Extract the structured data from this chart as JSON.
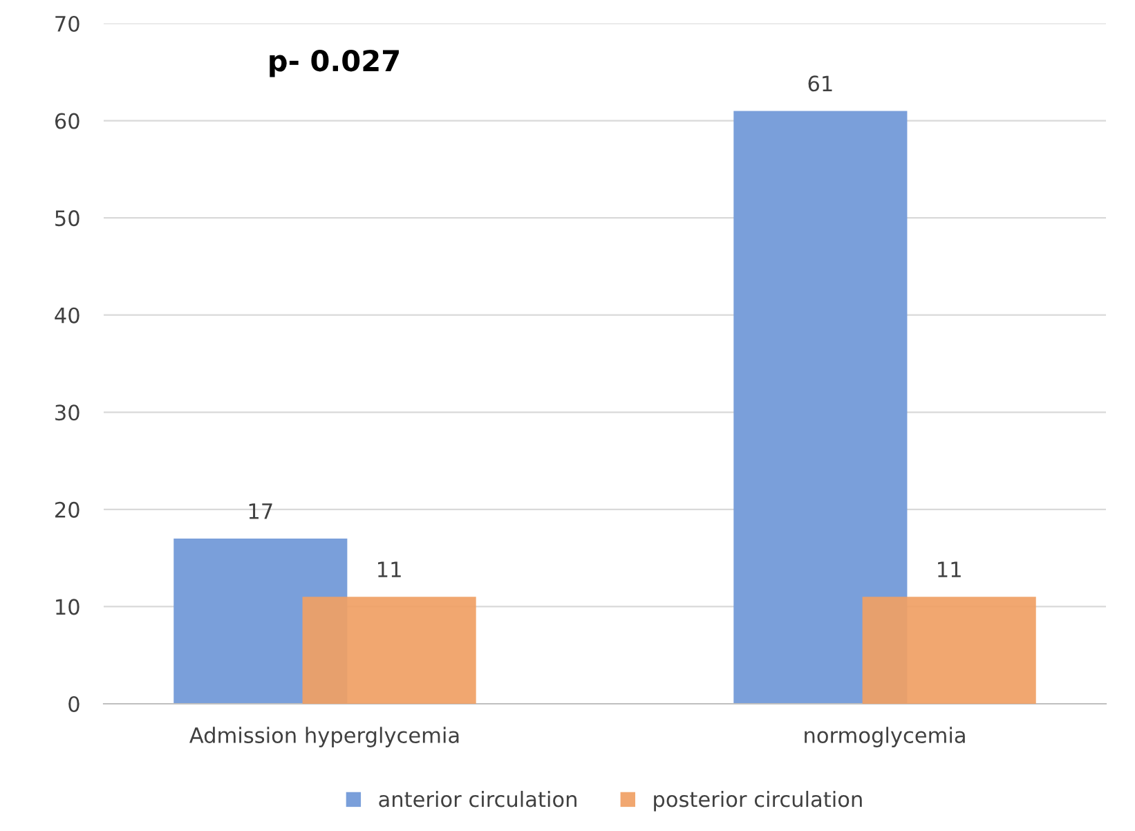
{
  "chart_data": {
    "type": "bar",
    "categories": [
      "Admission hyperglycemia",
      "normoglycemia"
    ],
    "series": [
      {
        "name": "anterior circulation",
        "color": "#7a9fda",
        "values": [
          17,
          61
        ]
      },
      {
        "name": "posterior circulation",
        "color": "#f0a064",
        "values": [
          11,
          11
        ]
      }
    ],
    "ylim": [
      0,
      70
    ],
    "yticks": [
      0,
      10,
      20,
      30,
      40,
      50,
      60,
      70
    ],
    "grid": "y",
    "legend": "bottom",
    "data_labels": true,
    "annotations": [
      "p- 0.027"
    ]
  }
}
